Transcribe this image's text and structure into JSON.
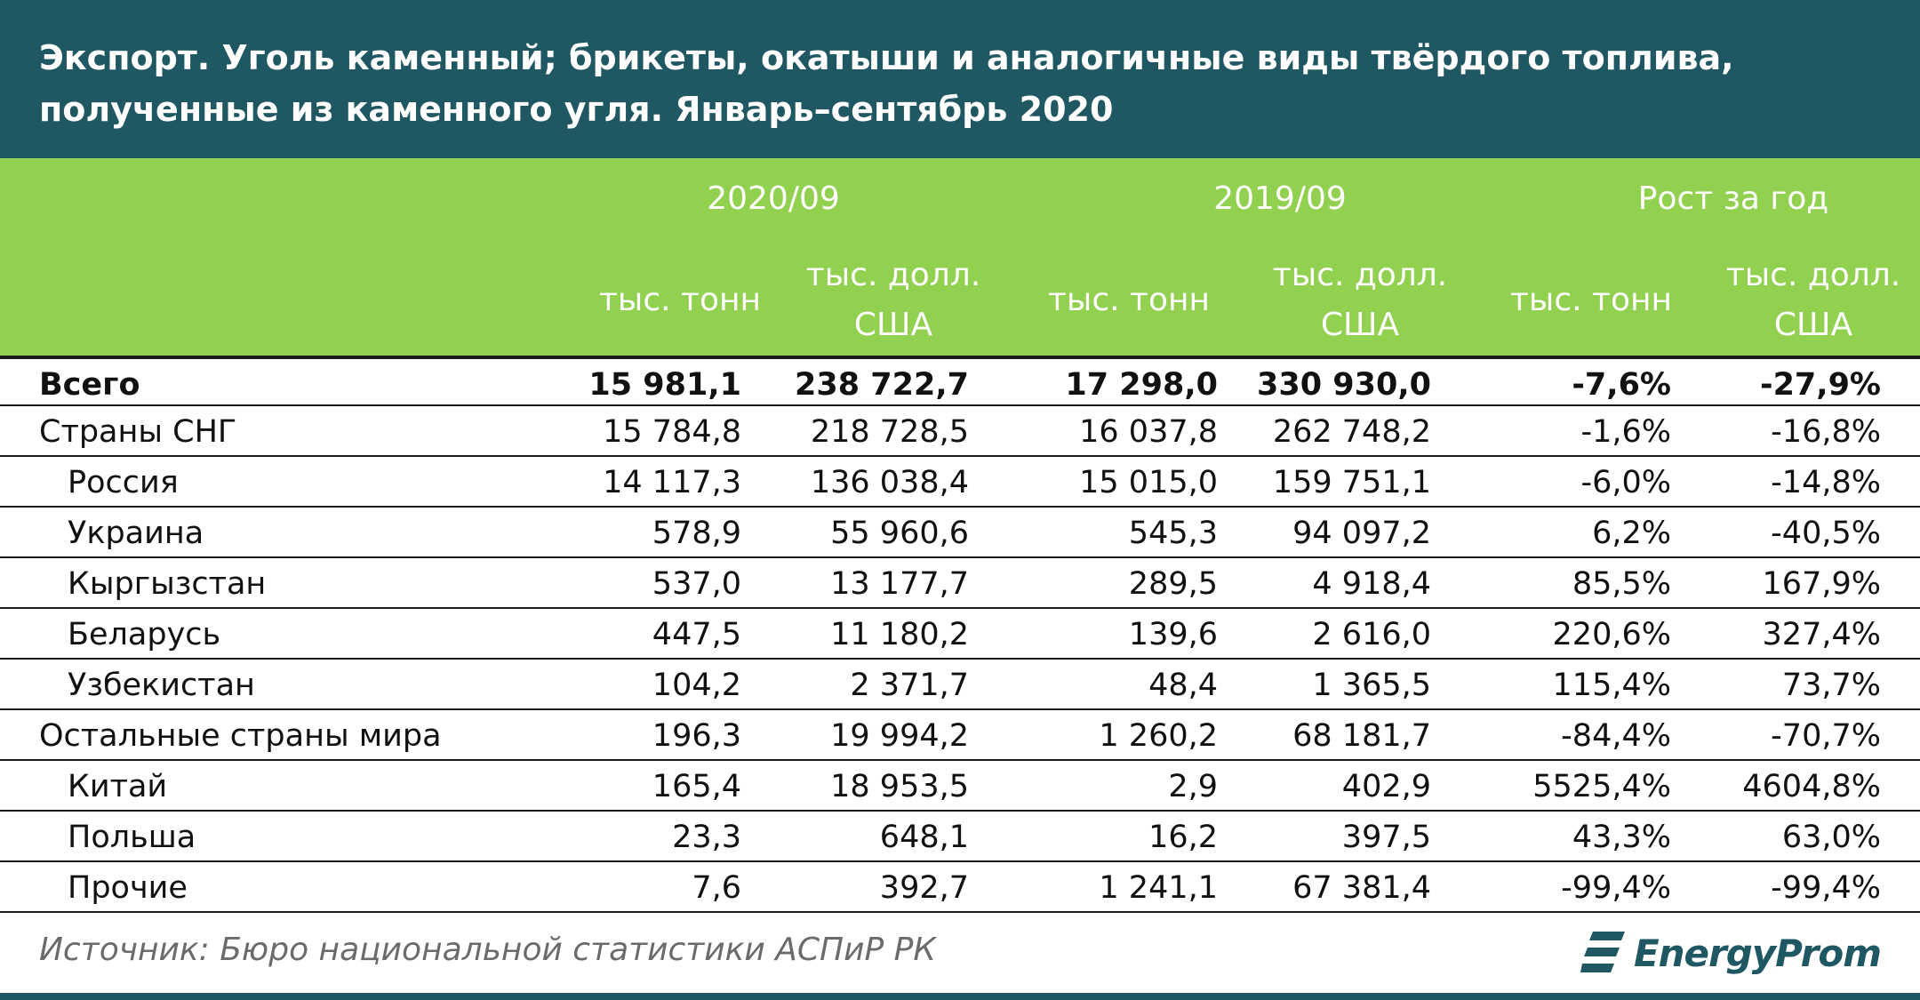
{
  "title": {
    "line1": "Экспорт. Уголь каменный; брикеты, окатыши и аналогичные виды твёрдого топлива,",
    "line2": "полученные из каменного угля. Январь–сентябрь 2020"
  },
  "header": {
    "group1": "2020/09",
    "group2": "2019/09",
    "group3": "Рост за год",
    "tons": "тыс. тонн",
    "usd_line1": "тыс. долл.",
    "usd_line2": "США"
  },
  "rows": [
    {
      "name": "Всего",
      "v": [
        "15 981,1",
        "238 722,7",
        "17 298,0",
        "330 930,0",
        "-7,6%",
        "-27,9%"
      ]
    },
    {
      "name": "Страны СНГ",
      "v": [
        "15 784,8",
        "218 728,5",
        "16 037,8",
        "262 748,2",
        "-1,6%",
        "-16,8%"
      ]
    },
    {
      "name": "Россия",
      "v": [
        "14 117,3",
        "136 038,4",
        "15 015,0",
        "159 751,1",
        "-6,0%",
        "-14,8%"
      ]
    },
    {
      "name": "Украина",
      "v": [
        "578,9",
        "55 960,6",
        "545,3",
        "94 097,2",
        "6,2%",
        "-40,5%"
      ]
    },
    {
      "name": "Кыргызстан",
      "v": [
        "537,0",
        "13 177,7",
        "289,5",
        "4 918,4",
        "85,5%",
        "167,9%"
      ]
    },
    {
      "name": "Беларусь",
      "v": [
        "447,5",
        "11 180,2",
        "139,6",
        "2 616,0",
        "220,6%",
        "327,4%"
      ]
    },
    {
      "name": "Узбекистан",
      "v": [
        "104,2",
        "2 371,7",
        "48,4",
        "1 365,5",
        "115,4%",
        "73,7%"
      ]
    },
    {
      "name": "Остальные страны мира",
      "v": [
        "196,3",
        "19 994,2",
        "1 260,2",
        "68 181,7",
        "-84,4%",
        "-70,7%"
      ]
    },
    {
      "name": "Китай",
      "v": [
        "165,4",
        "18 953,5",
        "2,9",
        "402,9",
        "5525,4%",
        "4604,8%"
      ]
    },
    {
      "name": "Польша",
      "v": [
        "23,3",
        "648,1",
        "16,2",
        "397,5",
        "43,3%",
        "63,0%"
      ]
    },
    {
      "name": "Прочие",
      "v": [
        "7,6",
        "392,7",
        "1 241,1",
        "67 381,4",
        "-99,4%",
        "-99,4%"
      ]
    }
  ],
  "footer": {
    "source": "Источник: Бюро национальной статистики АСПиР РК",
    "logo_text": "EnergyProm",
    "logo_icon": "energyprom-logo-icon"
  },
  "colors": {
    "title_bg": "#1f5762",
    "header_bg": "#92d050",
    "header_text": "#ffffff"
  }
}
